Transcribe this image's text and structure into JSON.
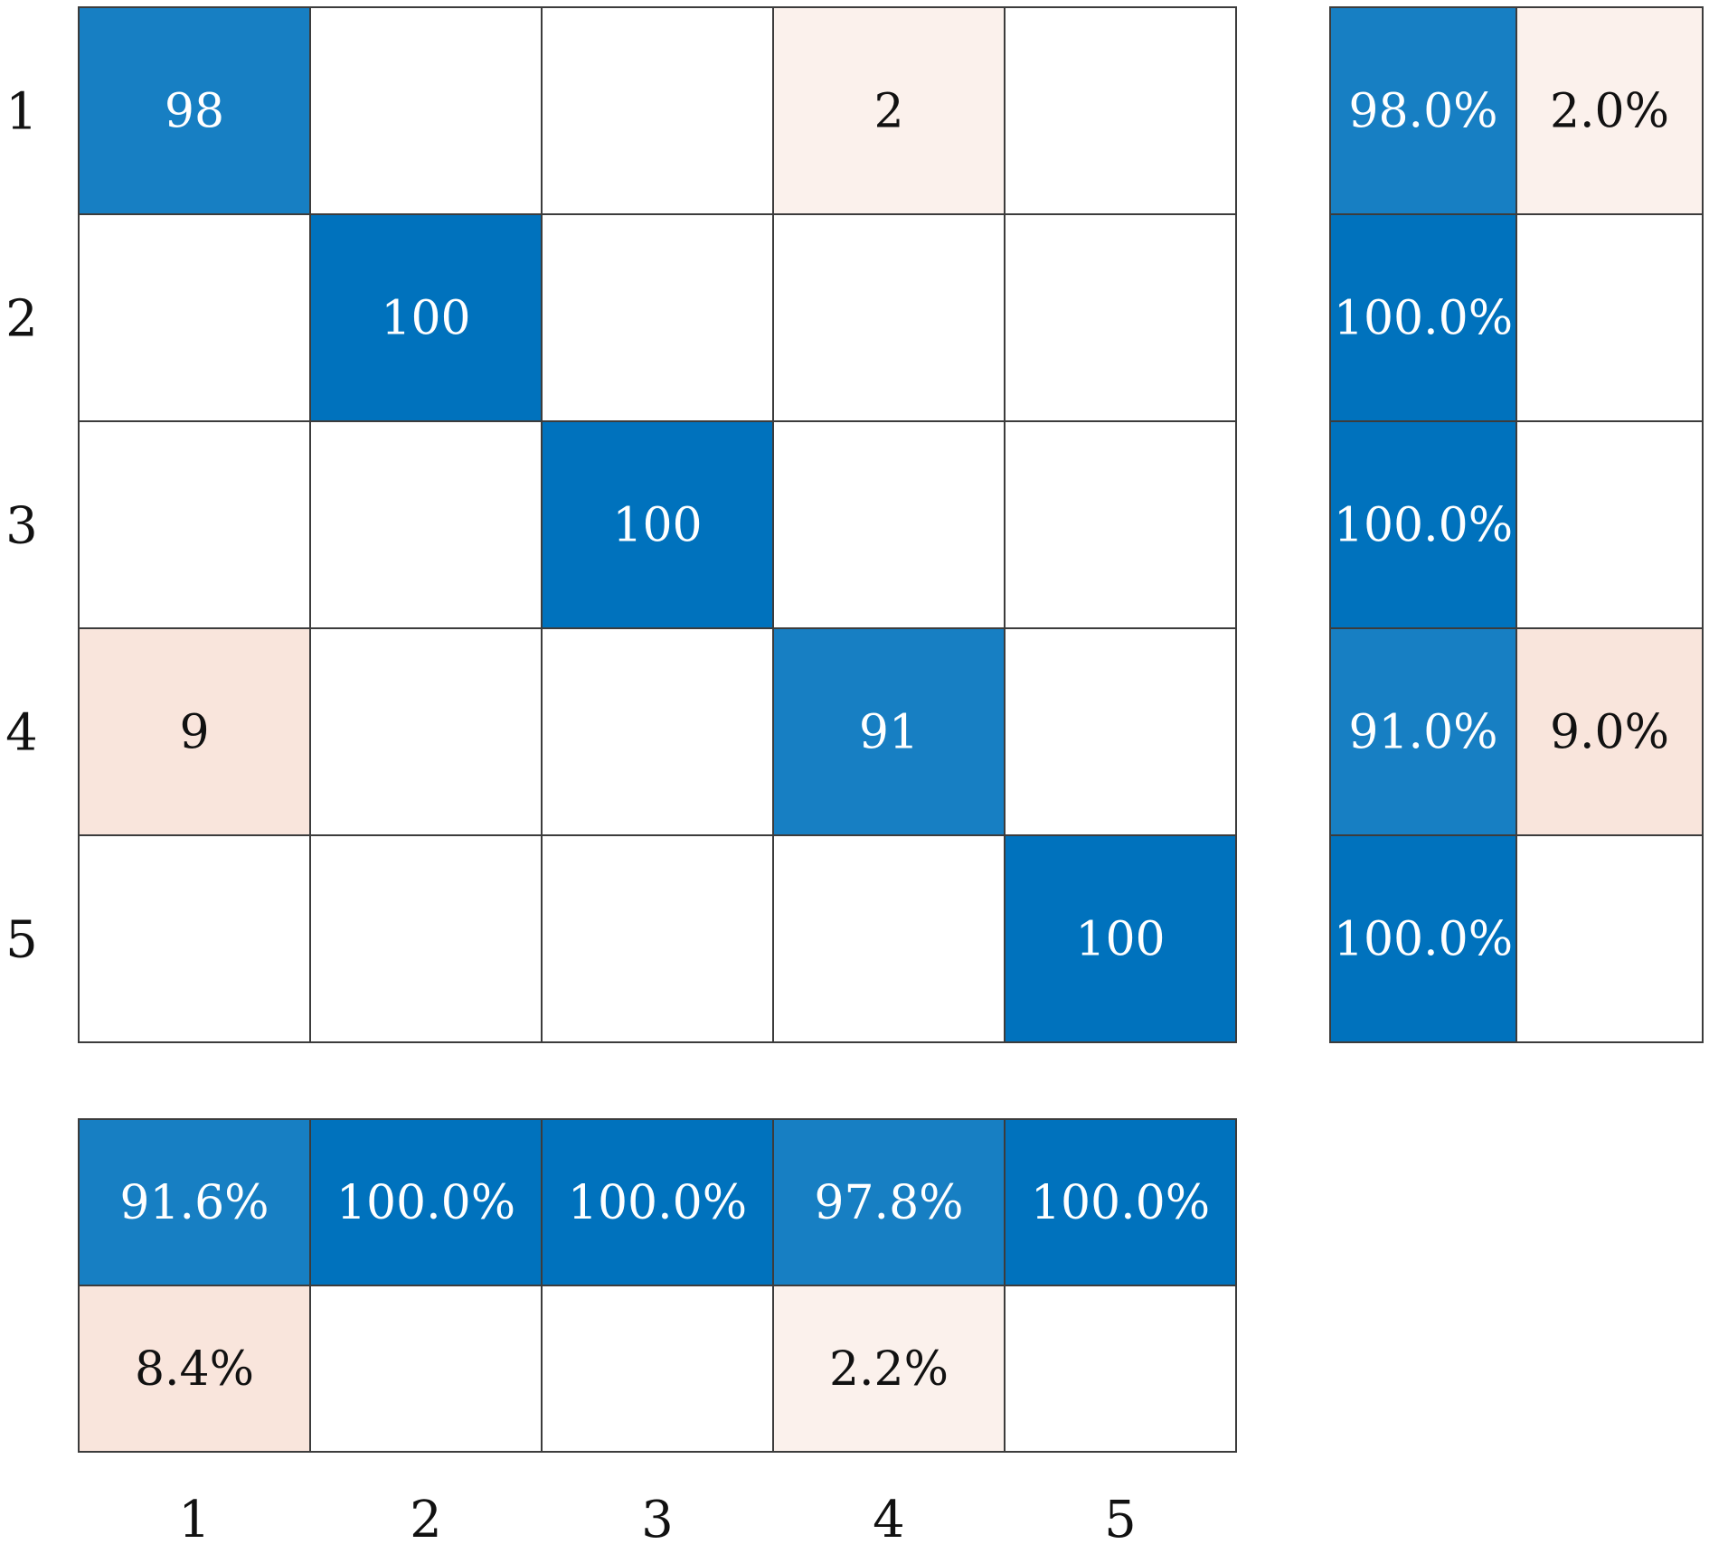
{
  "chart_data": {
    "type": "heatmap",
    "title": "",
    "xlabel": "",
    "ylabel": "",
    "row_labels": [
      "1",
      "2",
      "3",
      "4",
      "5"
    ],
    "col_labels": [
      "1",
      "2",
      "3",
      "4",
      "5"
    ],
    "matrix": [
      [
        98,
        0,
        0,
        2,
        0
      ],
      [
        0,
        100,
        0,
        0,
        0
      ],
      [
        0,
        0,
        100,
        0,
        0
      ],
      [
        9,
        0,
        0,
        91,
        0
      ],
      [
        0,
        0,
        0,
        0,
        100
      ]
    ],
    "matrix_text": [
      [
        "98",
        "",
        "",
        "2",
        ""
      ],
      [
        "",
        "100",
        "",
        "",
        ""
      ],
      [
        "",
        "",
        "100",
        "",
        ""
      ],
      [
        "9",
        "",
        "",
        "91",
        ""
      ],
      [
        "",
        "",
        "",
        "",
        "100"
      ]
    ],
    "row_summary": {
      "correct": [
        98.0,
        100.0,
        100.0,
        91.0,
        100.0
      ],
      "incorrect": [
        2.0,
        0,
        0,
        9.0,
        0
      ],
      "correct_text": [
        "98.0%",
        "100.0%",
        "100.0%",
        "91.0%",
        "100.0%"
      ],
      "incorrect_text": [
        "2.0%",
        "",
        "",
        "9.0%",
        ""
      ]
    },
    "column_summary": {
      "correct": [
        91.6,
        100.0,
        100.0,
        97.8,
        100.0
      ],
      "incorrect": [
        8.4,
        0,
        0,
        2.2,
        0
      ],
      "correct_text": [
        "91.6%",
        "100.0%",
        "100.0%",
        "97.8%",
        "100.0%"
      ],
      "incorrect_text": [
        "8.4%",
        "",
        "",
        "2.2%",
        ""
      ]
    },
    "colors": {
      "correct_strong": "#0072bd",
      "correct_light": "#177fc3",
      "error_light": "#fbf1ec",
      "error_mid": "#f9e5dc",
      "grid": "#3c3c3c",
      "text_dark": "#111111",
      "text_light": "#ffffff"
    }
  }
}
